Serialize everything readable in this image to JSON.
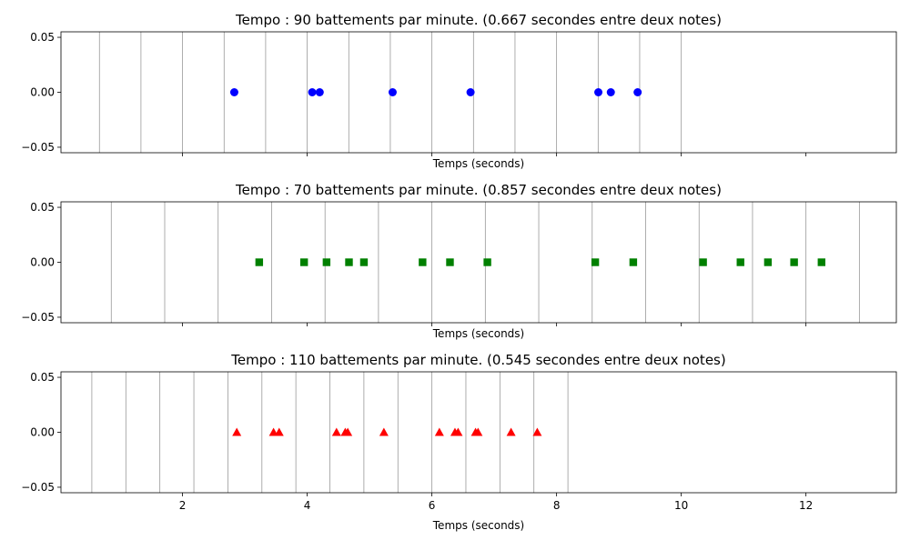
{
  "chart_data": [
    {
      "type": "scatter",
      "title": "Tempo : 90 battements par minute. (0.667 secondes entre deux notes)",
      "xlabel": "Temps (seconds)",
      "ylabel": "",
      "xlim": [
        0.05,
        13.45
      ],
      "ylim": [
        -0.055,
        0.055
      ],
      "yticks": [
        "0.05",
        "0.00",
        "−0.05"
      ],
      "xticks": [],
      "marker": "circle",
      "color": "#0000ff",
      "grid_color": "#999999",
      "beat_lines": [
        0.667,
        1.333,
        2.0,
        2.667,
        3.333,
        4.0,
        4.667,
        5.333,
        6.0,
        6.667,
        7.333,
        8.0,
        8.667,
        9.333,
        10.0
      ],
      "x": [
        2.83,
        4.08,
        4.2,
        5.37,
        6.62,
        8.67,
        8.87,
        9.3
      ],
      "y": [
        0,
        0,
        0,
        0,
        0,
        0,
        0,
        0
      ]
    },
    {
      "type": "scatter",
      "title": "Tempo : 70 battements par minute. (0.857 secondes entre deux notes)",
      "xlabel": "Temps (seconds)",
      "ylabel": "",
      "xlim": [
        0.05,
        13.45
      ],
      "ylim": [
        -0.055,
        0.055
      ],
      "yticks": [
        "0.05",
        "0.00",
        "−0.05"
      ],
      "xticks": [],
      "marker": "square",
      "color": "#008000",
      "grid_color": "#999999",
      "beat_lines": [
        0.857,
        1.714,
        2.571,
        3.429,
        4.286,
        5.143,
        6.0,
        6.857,
        7.714,
        8.571,
        9.429,
        10.286,
        11.143,
        12.0,
        12.857
      ],
      "x": [
        3.23,
        3.95,
        4.31,
        4.67,
        4.91,
        5.85,
        6.29,
        6.89,
        8.62,
        9.23,
        10.35,
        10.95,
        11.39,
        11.81,
        12.25
      ],
      "y": [
        0,
        0,
        0,
        0,
        0,
        0,
        0,
        0,
        0,
        0,
        0,
        0,
        0,
        0,
        0
      ]
    },
    {
      "type": "scatter",
      "title": "Tempo : 110 battements par minute. (0.545 secondes entre deux notes)",
      "xlabel": "Temps (seconds)",
      "ylabel": "",
      "xlim": [
        0.05,
        13.45
      ],
      "ylim": [
        -0.055,
        0.055
      ],
      "yticks": [
        "0.05",
        "0.00",
        "−0.05"
      ],
      "xticks": [
        "2",
        "4",
        "6",
        "8",
        "10",
        "12"
      ],
      "marker": "triangle",
      "color": "#ff0000",
      "grid_color": "#999999",
      "beat_lines": [
        0.545,
        1.091,
        1.636,
        2.182,
        2.727,
        3.273,
        3.818,
        4.364,
        4.909,
        5.455,
        6.0,
        6.545,
        7.091,
        7.636,
        8.182
      ],
      "x": [
        2.87,
        3.46,
        3.55,
        4.47,
        4.61,
        4.65,
        5.23,
        6.12,
        6.37,
        6.42,
        6.7,
        6.74,
        7.27,
        7.69
      ],
      "y": [
        0,
        0,
        0,
        0,
        0,
        0,
        0,
        0,
        0,
        0,
        0,
        0,
        0,
        0
      ]
    }
  ]
}
